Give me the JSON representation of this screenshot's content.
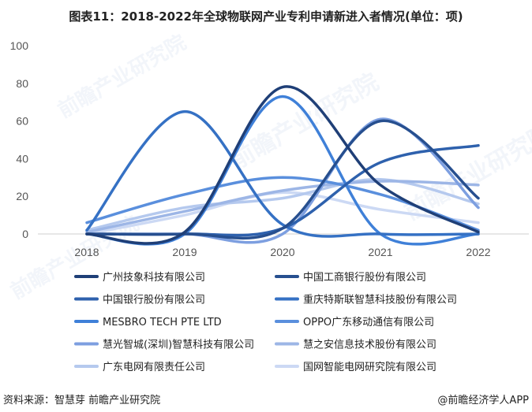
{
  "title": "图表11：2018-2022年全球物联网产业专利申请新进入者情况(单位：项)",
  "source": "资料来源：智慧芽 前瞻产业研究院",
  "brand": "@前瞻经济学人APP",
  "watermark_text": "前瞻产业研究院",
  "chart_data": {
    "type": "line",
    "title": "图表11：2018-2022年全球物联网产业专利申请新进入者情况(单位：项)",
    "xlabel": "",
    "ylabel": "",
    "categories": [
      "2018",
      "2019",
      "2020",
      "2021",
      "2022"
    ],
    "ylim": [
      0,
      100
    ],
    "yticks": [
      0,
      20,
      40,
      60,
      80,
      100
    ],
    "grid": false,
    "legend_position": "bottom",
    "smooth": true,
    "series": [
      {
        "name": "广州技象科技有限公司",
        "values": [
          0,
          1,
          78,
          26,
          1
        ],
        "color": "#1f3f77"
      },
      {
        "name": "中国工商银行股份有限公司",
        "values": [
          0,
          0,
          3,
          60,
          19
        ],
        "color": "#274f8f"
      },
      {
        "name": "中国银行股份有限公司",
        "values": [
          0,
          0,
          3,
          38,
          47
        ],
        "color": "#2e61ad"
      },
      {
        "name": "重庆特斯联智慧科技股份有限公司",
        "values": [
          2,
          65,
          5,
          0,
          0
        ],
        "color": "#3571c4"
      },
      {
        "name": "MESBRO TECH PTE LTD",
        "values": [
          0,
          0,
          73,
          0,
          0
        ],
        "color": "#3f80d8"
      },
      {
        "name": "OPPO广东移动通信有限公司",
        "values": [
          6,
          21,
          30,
          21,
          2
        ],
        "color": "#5a8fdd"
      },
      {
        "name": "慧光智城(深圳)智慧科技有限公司",
        "values": [
          0,
          0,
          0,
          61,
          14
        ],
        "color": "#7d9fe0"
      },
      {
        "name": "慧之安信息技术股份有限公司",
        "values": [
          1,
          12,
          23,
          28,
          26
        ],
        "color": "#9db6e6"
      },
      {
        "name": "广东电网有限责任公司",
        "values": [
          2,
          14,
          19,
          29,
          16
        ],
        "color": "#b5c9ee"
      },
      {
        "name": "国网智能电网研究院有限公司",
        "values": [
          0,
          10,
          22,
          13,
          6
        ],
        "color": "#ccd9f4"
      }
    ]
  }
}
